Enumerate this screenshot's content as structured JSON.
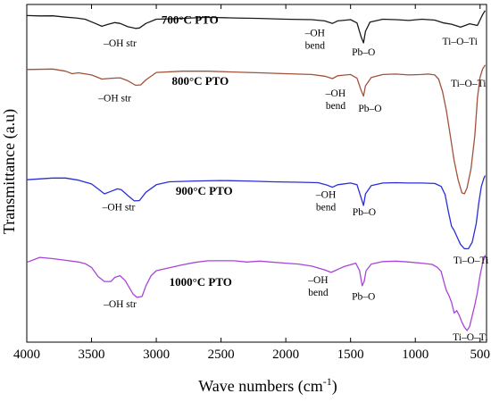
{
  "chart_data": {
    "type": "line",
    "title": "",
    "xlabel": "Wave numbers (cm⁻¹)",
    "xlabel_main": "Wave numbers (cm",
    "xlabel_sup": "-1",
    "xlabel_close": ")",
    "ylabel": "Transmittance (a.u)",
    "xlim": [
      4000,
      450
    ],
    "x_reversed": true,
    "xticks": [
      4000,
      3500,
      3000,
      2500,
      2000,
      1500,
      1000,
      500
    ],
    "y_ticks_shown": false,
    "grid": false,
    "legend": "none",
    "series": [
      {
        "name": "700°C PTO",
        "color": "#1a1a1a",
        "points": [
          [
            4000,
            0.5
          ],
          [
            3900,
            0.45
          ],
          [
            3800,
            0.46
          ],
          [
            3700,
            0.3
          ],
          [
            3620,
            0.2
          ],
          [
            3550,
            0.05
          ],
          [
            3480,
            -0.4
          ],
          [
            3420,
            -0.8
          ],
          [
            3370,
            -0.55
          ],
          [
            3320,
            -0.35
          ],
          [
            3280,
            -0.45
          ],
          [
            3220,
            -0.85
          ],
          [
            3160,
            -1.05
          ],
          [
            3130,
            -1.0
          ],
          [
            3080,
            -0.45
          ],
          [
            3000,
            0.05
          ],
          [
            2900,
            0.1
          ],
          [
            2600,
            0.28
          ],
          [
            2400,
            0.2
          ],
          [
            2200,
            0.15
          ],
          [
            2000,
            0.05
          ],
          [
            1800,
            0.0
          ],
          [
            1700,
            -0.15
          ],
          [
            1640,
            -0.45
          ],
          [
            1600,
            -0.15
          ],
          [
            1500,
            0.0
          ],
          [
            1450,
            -0.4
          ],
          [
            1420,
            -2.0
          ],
          [
            1400,
            -2.8
          ],
          [
            1385,
            -1.4
          ],
          [
            1350,
            -0.3
          ],
          [
            1250,
            0.05
          ],
          [
            1150,
            0.0
          ],
          [
            1050,
            -0.1
          ],
          [
            950,
            0.05
          ],
          [
            850,
            -0.05
          ],
          [
            780,
            -0.4
          ],
          [
            720,
            -0.55
          ],
          [
            650,
            -0.9
          ],
          [
            580,
            -0.5
          ],
          [
            520,
            -0.7
          ],
          [
            480,
            0.6
          ],
          [
            460,
            1.1
          ]
        ],
        "label_text": "700°C PTO",
        "label_at": [
          2960,
          -0.5
        ]
      },
      {
        "name": "800°C PTO",
        "color": "#a0523a",
        "points": [
          [
            4000,
            0.45
          ],
          [
            3800,
            0.5
          ],
          [
            3700,
            0.25
          ],
          [
            3650,
            -0.05
          ],
          [
            3600,
            0.05
          ],
          [
            3500,
            -0.2
          ],
          [
            3420,
            -0.7
          ],
          [
            3350,
            -0.6
          ],
          [
            3280,
            -0.55
          ],
          [
            3220,
            -0.9
          ],
          [
            3160,
            -1.45
          ],
          [
            3120,
            -1.4
          ],
          [
            3080,
            -0.8
          ],
          [
            3000,
            0.1
          ],
          [
            2800,
            0.25
          ],
          [
            2600,
            0.25
          ],
          [
            2400,
            0.15
          ],
          [
            2200,
            0.05
          ],
          [
            2000,
            -0.05
          ],
          [
            1800,
            -0.15
          ],
          [
            1700,
            -0.35
          ],
          [
            1640,
            -0.65
          ],
          [
            1600,
            -0.3
          ],
          [
            1500,
            -0.15
          ],
          [
            1450,
            -0.6
          ],
          [
            1420,
            -2.0
          ],
          [
            1400,
            -2.75
          ],
          [
            1385,
            -1.5
          ],
          [
            1340,
            -0.5
          ],
          [
            1250,
            -0.15
          ],
          [
            1150,
            -0.1
          ],
          [
            1050,
            -0.2
          ],
          [
            950,
            -0.15
          ],
          [
            900,
            -0.1
          ],
          [
            850,
            -0.2
          ],
          [
            820,
            -0.7
          ],
          [
            790,
            -2.2
          ],
          [
            760,
            -4.5
          ],
          [
            730,
            -7.5
          ],
          [
            700,
            -10.5
          ],
          [
            670,
            -12.8
          ],
          [
            640,
            -14.4
          ],
          [
            620,
            -14.5
          ],
          [
            600,
            -13.8
          ],
          [
            570,
            -11.5
          ],
          [
            540,
            -7.5
          ],
          [
            520,
            -3.0
          ],
          [
            500,
            -0.5
          ],
          [
            480,
            0.5
          ],
          [
            460,
            1.0
          ]
        ],
        "label_text": "800°C PTO",
        "label_at": [
          2880,
          -1.4
        ]
      },
      {
        "name": "900°C PTO",
        "color": "#2a2ed6",
        "points": [
          [
            4000,
            0.3
          ],
          [
            3800,
            0.5
          ],
          [
            3700,
            0.5
          ],
          [
            3600,
            0.25
          ],
          [
            3500,
            -0.2
          ],
          [
            3450,
            -0.8
          ],
          [
            3400,
            -1.4
          ],
          [
            3350,
            -1.1
          ],
          [
            3300,
            -0.8
          ],
          [
            3270,
            -0.9
          ],
          [
            3220,
            -1.6
          ],
          [
            3170,
            -2.25
          ],
          [
            3130,
            -2.2
          ],
          [
            3080,
            -1.2
          ],
          [
            3000,
            -0.3
          ],
          [
            2900,
            0.05
          ],
          [
            2700,
            0.15
          ],
          [
            2500,
            0.2
          ],
          [
            2300,
            0.15
          ],
          [
            2100,
            0.05
          ],
          [
            1900,
            0.0
          ],
          [
            1750,
            -0.05
          ],
          [
            1680,
            -0.35
          ],
          [
            1640,
            -0.6
          ],
          [
            1600,
            -0.3
          ],
          [
            1500,
            -0.1
          ],
          [
            1450,
            -0.3
          ],
          [
            1420,
            -1.8
          ],
          [
            1400,
            -2.8
          ],
          [
            1385,
            -1.4
          ],
          [
            1340,
            -0.4
          ],
          [
            1250,
            -0.1
          ],
          [
            1150,
            -0.05
          ],
          [
            1050,
            -0.1
          ],
          [
            950,
            -0.1
          ],
          [
            850,
            -0.15
          ],
          [
            800,
            -0.5
          ],
          [
            770,
            -1.5
          ],
          [
            745,
            -3.5
          ],
          [
            720,
            -5.3
          ],
          [
            700,
            -5.8
          ],
          [
            680,
            -6.5
          ],
          [
            650,
            -7.5
          ],
          [
            620,
            -8.0
          ],
          [
            590,
            -8.0
          ],
          [
            560,
            -7.2
          ],
          [
            530,
            -5.0
          ],
          [
            510,
            -2.5
          ],
          [
            490,
            -0.5
          ],
          [
            470,
            0.5
          ],
          [
            460,
            0.8
          ]
        ],
        "label_text": "900°C PTO",
        "label_at": [
          2850,
          -1.5
        ]
      },
      {
        "name": "1000°C PTO",
        "color": "#a845d8",
        "points": [
          [
            4000,
            -0.4
          ],
          [
            3900,
            0.2
          ],
          [
            3800,
            0.05
          ],
          [
            3700,
            -0.15
          ],
          [
            3600,
            -0.35
          ],
          [
            3550,
            -0.55
          ],
          [
            3500,
            -1.0
          ],
          [
            3450,
            -2.1
          ],
          [
            3400,
            -2.7
          ],
          [
            3350,
            -2.7
          ],
          [
            3320,
            -2.2
          ],
          [
            3280,
            -2.0
          ],
          [
            3240,
            -2.6
          ],
          [
            3180,
            -4.2
          ],
          [
            3150,
            -4.6
          ],
          [
            3110,
            -4.5
          ],
          [
            3080,
            -3.2
          ],
          [
            3040,
            -2.0
          ],
          [
            3000,
            -1.4
          ],
          [
            2800,
            -0.7
          ],
          [
            2700,
            -0.4
          ],
          [
            2600,
            -0.2
          ],
          [
            2400,
            -0.2
          ],
          [
            2300,
            -0.35
          ],
          [
            2200,
            -0.25
          ],
          [
            2000,
            -0.5
          ],
          [
            1900,
            -0.6
          ],
          [
            1800,
            -0.85
          ],
          [
            1700,
            -1.3
          ],
          [
            1650,
            -1.6
          ],
          [
            1620,
            -1.4
          ],
          [
            1550,
            -0.9
          ],
          [
            1460,
            -0.5
          ],
          [
            1430,
            -1.4
          ],
          [
            1410,
            -3.2
          ],
          [
            1395,
            -2.7
          ],
          [
            1380,
            -1.4
          ],
          [
            1340,
            -0.6
          ],
          [
            1250,
            -0.3
          ],
          [
            1150,
            -0.25
          ],
          [
            1050,
            -0.35
          ],
          [
            950,
            -0.5
          ],
          [
            870,
            -0.65
          ],
          [
            830,
            -1.0
          ],
          [
            800,
            -1.5
          ],
          [
            780,
            -2.7
          ],
          [
            760,
            -3.8
          ],
          [
            740,
            -4.4
          ],
          [
            720,
            -5.2
          ],
          [
            700,
            -6.5
          ],
          [
            680,
            -6.2
          ],
          [
            660,
            -6.8
          ],
          [
            640,
            -7.6
          ],
          [
            620,
            -8.2
          ],
          [
            600,
            -8.6
          ],
          [
            580,
            -8.1
          ],
          [
            560,
            -6.8
          ],
          [
            540,
            -5.5
          ],
          [
            520,
            -4.0
          ],
          [
            500,
            -2.0
          ],
          [
            480,
            -0.5
          ],
          [
            460,
            0.5
          ]
        ],
        "label_text": "1000°C PTO",
        "label_at": [
          2900,
          -3.2
        ]
      }
    ],
    "annotations": [
      {
        "series": 0,
        "lines": [
          "–OH str"
        ],
        "x": 3280,
        "y": -3.2,
        "anchor": "middle"
      },
      {
        "series": 0,
        "lines": [
          "–OH",
          "bend"
        ],
        "x": 1775,
        "y": -2.0,
        "anchor": "middle"
      },
      {
        "series": 0,
        "lines": [
          "Pb–O"
        ],
        "x": 1400,
        "y": -4.3,
        "anchor": "middle"
      },
      {
        "series": 0,
        "lines": [
          "Ti–O–Ti"
        ],
        "x": 655,
        "y": -3.0,
        "anchor": "middle"
      },
      {
        "series": 1,
        "lines": [
          "–OH str"
        ],
        "x": 3320,
        "y": -3.4,
        "anchor": "middle"
      },
      {
        "series": 1,
        "lines": [
          "–OH",
          "bend"
        ],
        "x": 1615,
        "y": -2.8,
        "anchor": "middle"
      },
      {
        "series": 1,
        "lines": [
          "Pb–O"
        ],
        "x": 1350,
        "y": -4.6,
        "anchor": "middle"
      },
      {
        "series": 1,
        "lines": [
          "Ti–O–Ti"
        ],
        "x": 590,
        "y": -1.6,
        "anchor": "middle"
      },
      {
        "series": 2,
        "lines": [
          "–OH str"
        ],
        "x": 3290,
        "y": -3.4,
        "anchor": "middle"
      },
      {
        "series": 2,
        "lines": [
          "–OH",
          "bend"
        ],
        "x": 1690,
        "y": -1.9,
        "anchor": "middle"
      },
      {
        "series": 2,
        "lines": [
          "Pb–O"
        ],
        "x": 1395,
        "y": -4.0,
        "anchor": "middle"
      },
      {
        "series": 2,
        "lines": [
          "Ti–O–Ti"
        ],
        "x": 570,
        "y": -9.8,
        "anchor": "middle"
      },
      {
        "series": 3,
        "lines": [
          "–OH str"
        ],
        "x": 3280,
        "y": -5.8,
        "anchor": "middle"
      },
      {
        "series": 3,
        "lines": [
          "–OH",
          "bend"
        ],
        "x": 1750,
        "y": -2.9,
        "anchor": "middle"
      },
      {
        "series": 3,
        "lines": [
          "Pb–O"
        ],
        "x": 1400,
        "y": -4.9,
        "anchor": "middle"
      },
      {
        "series": 3,
        "lines": [
          "Ti–O–Ti"
        ],
        "x": 575,
        "y": -9.8,
        "anchor": "middle"
      }
    ]
  }
}
